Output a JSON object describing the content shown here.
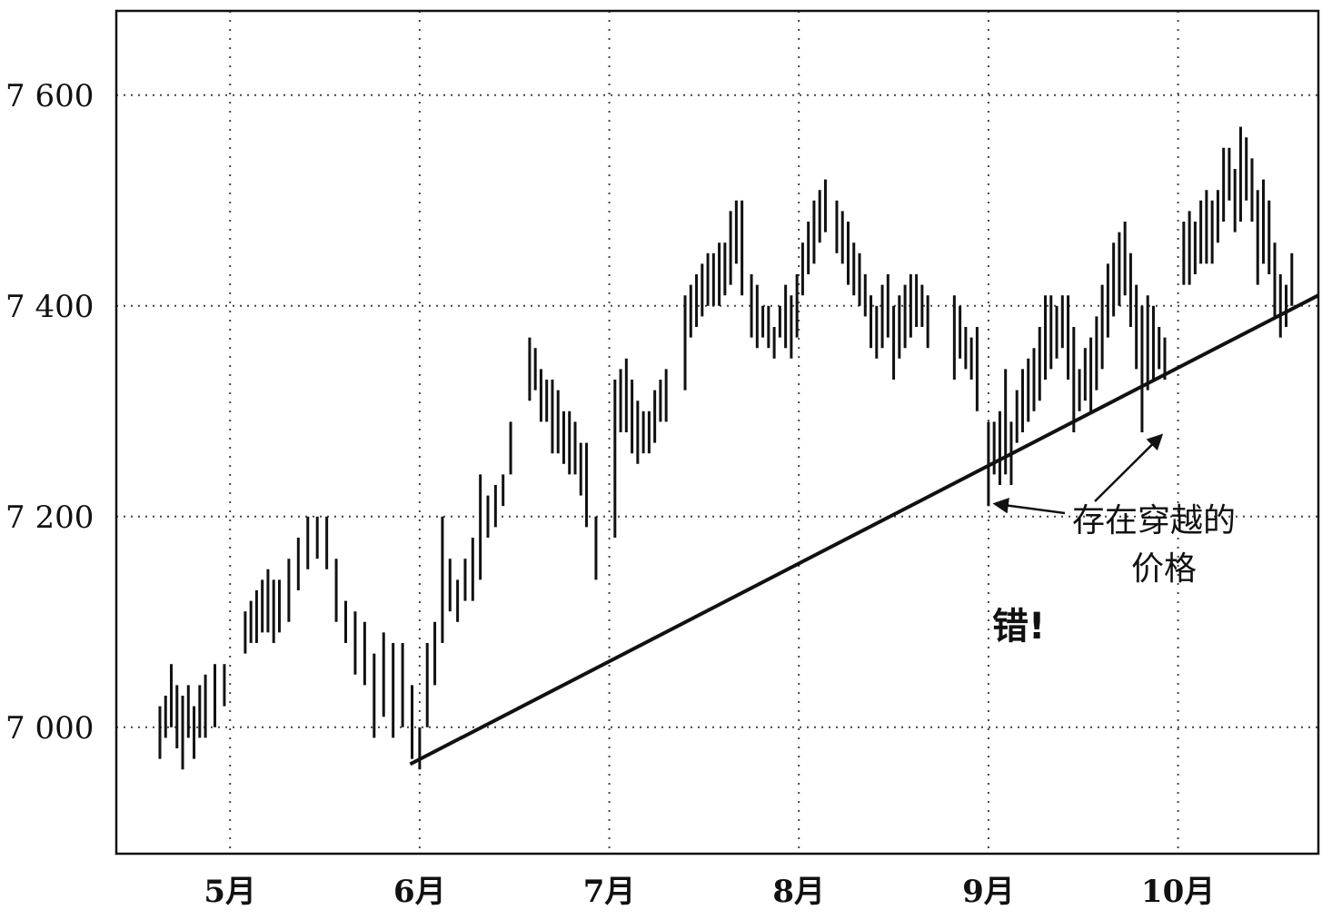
{
  "chart_data": {
    "type": "ohlc",
    "title": "",
    "xlabel": "",
    "ylabel": "",
    "ylim": [
      6880,
      7680
    ],
    "y_ticks": [
      {
        "value": 7000,
        "label": "7 000"
      },
      {
        "value": 7200,
        "label": "7 200"
      },
      {
        "value": 7400,
        "label": "7 400"
      },
      {
        "value": 7600,
        "label": "7 600"
      }
    ],
    "x_months": [
      {
        "label": "5月",
        "pos": 2.0
      },
      {
        "label": "6月",
        "pos": 3.0
      },
      {
        "label": "7月",
        "pos": 4.0
      },
      {
        "label": "8月",
        "pos": 5.0
      },
      {
        "label": "9月",
        "pos": 6.0
      },
      {
        "label": "10月",
        "pos": 7.0
      }
    ],
    "xlim": [
      1.4,
      7.74
    ],
    "grid": true,
    "series": [
      {
        "values": [
          {
            "x": 1.63,
            "low": 6970,
            "high": 7020
          },
          {
            "x": 1.66,
            "low": 6990,
            "high": 7030
          },
          {
            "x": 1.69,
            "low": 7000,
            "high": 7060
          },
          {
            "x": 1.72,
            "low": 6980,
            "high": 7040
          },
          {
            "x": 1.75,
            "low": 6960,
            "high": 7030
          },
          {
            "x": 1.78,
            "low": 6990,
            "high": 7040
          },
          {
            "x": 1.81,
            "low": 6970,
            "high": 7020
          },
          {
            "x": 1.84,
            "low": 6990,
            "high": 7040
          },
          {
            "x": 1.87,
            "low": 6990,
            "high": 7050
          },
          {
            "x": 1.92,
            "low": 7000,
            "high": 7060
          },
          {
            "x": 1.97,
            "low": 7020,
            "high": 7060
          },
          {
            "x": 2.08,
            "low": 7070,
            "high": 7110
          },
          {
            "x": 2.11,
            "low": 7080,
            "high": 7120
          },
          {
            "x": 2.14,
            "low": 7080,
            "high": 7130
          },
          {
            "x": 2.17,
            "low": 7090,
            "high": 7140
          },
          {
            "x": 2.2,
            "low": 7090,
            "high": 7150
          },
          {
            "x": 2.23,
            "low": 7080,
            "high": 7140
          },
          {
            "x": 2.26,
            "low": 7090,
            "high": 7140
          },
          {
            "x": 2.31,
            "low": 7100,
            "high": 7160
          },
          {
            "x": 2.36,
            "low": 7130,
            "high": 7180
          },
          {
            "x": 2.41,
            "low": 7150,
            "high": 7200
          },
          {
            "x": 2.46,
            "low": 7160,
            "high": 7200
          },
          {
            "x": 2.51,
            "low": 7150,
            "high": 7200
          },
          {
            "x": 2.56,
            "low": 7100,
            "high": 7160
          },
          {
            "x": 2.61,
            "low": 7080,
            "high": 7120
          },
          {
            "x": 2.66,
            "low": 7050,
            "high": 7110
          },
          {
            "x": 2.71,
            "low": 7040,
            "high": 7100
          },
          {
            "x": 2.76,
            "low": 6990,
            "high": 7070
          },
          {
            "x": 2.81,
            "low": 7010,
            "high": 7090
          },
          {
            "x": 2.86,
            "low": 6990,
            "high": 7080
          },
          {
            "x": 2.91,
            "low": 7000,
            "high": 7080
          },
          {
            "x": 2.96,
            "low": 6970,
            "high": 7040
          },
          {
            "x": 3.0,
            "low": 6960,
            "high": 7000
          },
          {
            "x": 3.04,
            "low": 7000,
            "high": 7080
          },
          {
            "x": 3.08,
            "low": 7040,
            "high": 7100
          },
          {
            "x": 3.12,
            "low": 7080,
            "high": 7200
          },
          {
            "x": 3.16,
            "low": 7110,
            "high": 7160
          },
          {
            "x": 3.2,
            "low": 7100,
            "high": 7140
          },
          {
            "x": 3.24,
            "low": 7120,
            "high": 7160
          },
          {
            "x": 3.28,
            "low": 7120,
            "high": 7180
          },
          {
            "x": 3.32,
            "low": 7140,
            "high": 7240
          },
          {
            "x": 3.36,
            "low": 7180,
            "high": 7220
          },
          {
            "x": 3.4,
            "low": 7190,
            "high": 7230
          },
          {
            "x": 3.44,
            "low": 7210,
            "high": 7240
          },
          {
            "x": 3.48,
            "low": 7240,
            "high": 7290
          },
          {
            "x": 3.58,
            "low": 7310,
            "high": 7370
          },
          {
            "x": 3.61,
            "low": 7320,
            "high": 7360
          },
          {
            "x": 3.64,
            "low": 7290,
            "high": 7340
          },
          {
            "x": 3.67,
            "low": 7290,
            "high": 7330
          },
          {
            "x": 3.7,
            "low": 7260,
            "high": 7330
          },
          {
            "x": 3.73,
            "low": 7260,
            "high": 7320
          },
          {
            "x": 3.76,
            "low": 7250,
            "high": 7300
          },
          {
            "x": 3.79,
            "low": 7240,
            "high": 7300
          },
          {
            "x": 3.82,
            "low": 7240,
            "high": 7290
          },
          {
            "x": 3.85,
            "low": 7220,
            "high": 7270
          },
          {
            "x": 3.88,
            "low": 7190,
            "high": 7270
          },
          {
            "x": 3.93,
            "low": 7140,
            "high": 7200
          },
          {
            "x": 4.03,
            "low": 7180,
            "high": 7330
          },
          {
            "x": 4.06,
            "low": 7280,
            "high": 7340
          },
          {
            "x": 4.09,
            "low": 7280,
            "high": 7350
          },
          {
            "x": 4.12,
            "low": 7260,
            "high": 7330
          },
          {
            "x": 4.15,
            "low": 7250,
            "high": 7310
          },
          {
            "x": 4.18,
            "low": 7260,
            "high": 7300
          },
          {
            "x": 4.21,
            "low": 7260,
            "high": 7300
          },
          {
            "x": 4.24,
            "low": 7270,
            "high": 7320
          },
          {
            "x": 4.27,
            "low": 7290,
            "high": 7330
          },
          {
            "x": 4.3,
            "low": 7290,
            "high": 7340
          },
          {
            "x": 4.4,
            "low": 7320,
            "high": 7410
          },
          {
            "x": 4.43,
            "low": 7370,
            "high": 7420
          },
          {
            "x": 4.46,
            "low": 7380,
            "high": 7430
          },
          {
            "x": 4.49,
            "low": 7390,
            "high": 7440
          },
          {
            "x": 4.52,
            "low": 7400,
            "high": 7450
          },
          {
            "x": 4.55,
            "low": 7400,
            "high": 7450
          },
          {
            "x": 4.58,
            "low": 7400,
            "high": 7460
          },
          {
            "x": 4.61,
            "low": 7410,
            "high": 7460
          },
          {
            "x": 4.64,
            "low": 7420,
            "high": 7490
          },
          {
            "x": 4.67,
            "low": 7440,
            "high": 7500
          },
          {
            "x": 4.7,
            "low": 7410,
            "high": 7500
          },
          {
            "x": 4.75,
            "low": 7370,
            "high": 7430
          },
          {
            "x": 4.78,
            "low": 7360,
            "high": 7420
          },
          {
            "x": 4.81,
            "low": 7370,
            "high": 7400
          },
          {
            "x": 4.84,
            "low": 7360,
            "high": 7400
          },
          {
            "x": 4.87,
            "low": 7350,
            "high": 7380
          },
          {
            "x": 4.9,
            "low": 7370,
            "high": 7400
          },
          {
            "x": 4.93,
            "low": 7360,
            "high": 7420
          },
          {
            "x": 4.96,
            "low": 7350,
            "high": 7410
          },
          {
            "x": 4.99,
            "low": 7370,
            "high": 7430
          },
          {
            "x": 5.02,
            "low": 7410,
            "high": 7460
          },
          {
            "x": 5.05,
            "low": 7430,
            "high": 7480
          },
          {
            "x": 5.08,
            "low": 7440,
            "high": 7500
          },
          {
            "x": 5.11,
            "low": 7460,
            "high": 7510
          },
          {
            "x": 5.14,
            "low": 7470,
            "high": 7520
          },
          {
            "x": 5.2,
            "low": 7450,
            "high": 7500
          },
          {
            "x": 5.23,
            "low": 7440,
            "high": 7490
          },
          {
            "x": 5.26,
            "low": 7420,
            "high": 7480
          },
          {
            "x": 5.29,
            "low": 7410,
            "high": 7460
          },
          {
            "x": 5.32,
            "low": 7400,
            "high": 7450
          },
          {
            "x": 5.35,
            "low": 7390,
            "high": 7430
          },
          {
            "x": 5.38,
            "low": 7360,
            "high": 7410
          },
          {
            "x": 5.41,
            "low": 7350,
            "high": 7400
          },
          {
            "x": 5.44,
            "low": 7360,
            "high": 7420
          },
          {
            "x": 5.47,
            "low": 7370,
            "high": 7430
          },
          {
            "x": 5.5,
            "low": 7330,
            "high": 7400
          },
          {
            "x": 5.53,
            "low": 7350,
            "high": 7410
          },
          {
            "x": 5.56,
            "low": 7360,
            "high": 7420
          },
          {
            "x": 5.59,
            "low": 7370,
            "high": 7430
          },
          {
            "x": 5.62,
            "low": 7380,
            "high": 7430
          },
          {
            "x": 5.65,
            "low": 7380,
            "high": 7420
          },
          {
            "x": 5.68,
            "low": 7360,
            "high": 7410
          },
          {
            "x": 5.82,
            "low": 7330,
            "high": 7410
          },
          {
            "x": 5.85,
            "low": 7350,
            "high": 7400
          },
          {
            "x": 5.88,
            "low": 7340,
            "high": 7380
          },
          {
            "x": 5.91,
            "low": 7330,
            "high": 7370
          },
          {
            "x": 5.94,
            "low": 7300,
            "high": 7380
          },
          {
            "x": 6.0,
            "low": 7210,
            "high": 7290
          },
          {
            "x": 6.03,
            "low": 7240,
            "high": 7290
          },
          {
            "x": 6.06,
            "low": 7230,
            "high": 7300
          },
          {
            "x": 6.09,
            "low": 7240,
            "high": 7340
          },
          {
            "x": 6.12,
            "low": 7230,
            "high": 7290
          },
          {
            "x": 6.15,
            "low": 7270,
            "high": 7320
          },
          {
            "x": 6.18,
            "low": 7280,
            "high": 7340
          },
          {
            "x": 6.21,
            "low": 7290,
            "high": 7350
          },
          {
            "x": 6.24,
            "low": 7300,
            "high": 7360
          },
          {
            "x": 6.27,
            "low": 7310,
            "high": 7380
          },
          {
            "x": 6.3,
            "low": 7330,
            "high": 7410
          },
          {
            "x": 6.33,
            "low": 7340,
            "high": 7410
          },
          {
            "x": 6.36,
            "low": 7350,
            "high": 7400
          },
          {
            "x": 6.39,
            "low": 7360,
            "high": 7410
          },
          {
            "x": 6.42,
            "low": 7330,
            "high": 7410
          },
          {
            "x": 6.45,
            "low": 7280,
            "high": 7380
          },
          {
            "x": 6.48,
            "low": 7300,
            "high": 7340
          },
          {
            "x": 6.51,
            "low": 7310,
            "high": 7360
          },
          {
            "x": 6.54,
            "low": 7300,
            "high": 7370
          },
          {
            "x": 6.57,
            "low": 7320,
            "high": 7390
          },
          {
            "x": 6.6,
            "low": 7340,
            "high": 7420
          },
          {
            "x": 6.63,
            "low": 7370,
            "high": 7440
          },
          {
            "x": 6.66,
            "low": 7390,
            "high": 7460
          },
          {
            "x": 6.69,
            "low": 7400,
            "high": 7470
          },
          {
            "x": 6.72,
            "low": 7410,
            "high": 7480
          },
          {
            "x": 6.75,
            "low": 7380,
            "high": 7450
          },
          {
            "x": 6.78,
            "low": 7340,
            "high": 7420
          },
          {
            "x": 6.81,
            "low": 7280,
            "high": 7400
          },
          {
            "x": 6.84,
            "low": 7320,
            "high": 7410
          },
          {
            "x": 6.87,
            "low": 7330,
            "high": 7400
          },
          {
            "x": 6.9,
            "low": 7340,
            "high": 7380
          },
          {
            "x": 6.93,
            "low": 7330,
            "high": 7370
          },
          {
            "x": 7.03,
            "low": 7420,
            "high": 7480
          },
          {
            "x": 7.06,
            "low": 7420,
            "high": 7490
          },
          {
            "x": 7.09,
            "low": 7430,
            "high": 7480
          },
          {
            "x": 7.12,
            "low": 7440,
            "high": 7500
          },
          {
            "x": 7.15,
            "low": 7440,
            "high": 7510
          },
          {
            "x": 7.18,
            "low": 7440,
            "high": 7500
          },
          {
            "x": 7.21,
            "low": 7460,
            "high": 7510
          },
          {
            "x": 7.24,
            "low": 7480,
            "high": 7550
          },
          {
            "x": 7.27,
            "low": 7500,
            "high": 7550
          },
          {
            "x": 7.3,
            "low": 7470,
            "high": 7530
          },
          {
            "x": 7.33,
            "low": 7480,
            "high": 7570
          },
          {
            "x": 7.36,
            "low": 7500,
            "high": 7560
          },
          {
            "x": 7.39,
            "low": 7480,
            "high": 7540
          },
          {
            "x": 7.42,
            "low": 7420,
            "high": 7510
          },
          {
            "x": 7.45,
            "low": 7440,
            "high": 7520
          },
          {
            "x": 7.48,
            "low": 7430,
            "high": 7500
          },
          {
            "x": 7.51,
            "low": 7390,
            "high": 7460
          },
          {
            "x": 7.54,
            "low": 7370,
            "high": 7430
          },
          {
            "x": 7.57,
            "low": 7380,
            "high": 7420
          },
          {
            "x": 7.6,
            "low": 7400,
            "high": 7450
          }
        ]
      }
    ],
    "trendline": {
      "x": [
        2.95,
        7.74
      ],
      "y": [
        6965,
        7410
      ]
    },
    "annotations": [
      {
        "lines": [
          "存在穿越的",
          "价格"
        ],
        "arrows_to": [
          {
            "x": 6.0,
            "y": 7212
          },
          {
            "x": 6.89,
            "y": 7280
          }
        ]
      },
      {
        "lines": [
          "错!"
        ]
      }
    ]
  }
}
